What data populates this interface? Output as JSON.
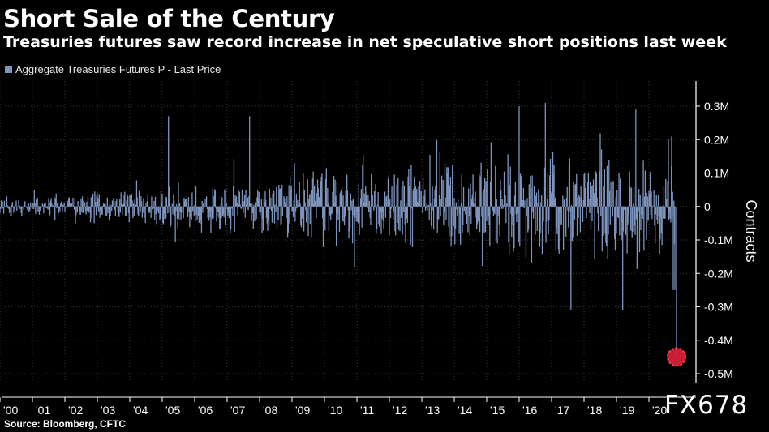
{
  "chart_data": {
    "type": "bar",
    "title": "Short Sale of the Century",
    "subtitle": "Treasuries futures saw record increase in net speculative short positions last week",
    "legend": [
      "Aggregate Treasuries Futures P - Last Price"
    ],
    "ylabel": "Contracts",
    "ylim": [
      -0.5,
      0.35
    ],
    "yunit": "M contracts",
    "yticks": [
      {
        "value": 0.3,
        "label": "0.3M"
      },
      {
        "value": 0.2,
        "label": "0.2M"
      },
      {
        "value": 0.1,
        "label": "0.1M"
      },
      {
        "value": 0,
        "label": "0"
      },
      {
        "value": -0.1,
        "label": "-0.1M"
      },
      {
        "value": -0.2,
        "label": "-0.2M"
      },
      {
        "value": -0.3,
        "label": "-0.3M"
      },
      {
        "value": -0.4,
        "label": "-0.4M"
      },
      {
        "value": -0.5,
        "label": "-0.5M"
      }
    ],
    "xrange": [
      2000,
      2021
    ],
    "xticks": [
      "'00",
      "'01",
      "'02",
      "'03",
      "'04",
      "'05",
      "'06",
      "'07",
      "'08",
      "'09",
      "'10",
      "'11",
      "'12",
      "'13",
      "'14",
      "'15",
      "'16",
      "'17",
      "'18",
      "'19",
      "'20"
    ],
    "series": [
      {
        "name": "Aggregate Treasuries Futures P - Last Price",
        "notable_points": [
          {
            "x": 2005.2,
            "y": 0.27
          },
          {
            "x": 2007.7,
            "y": 0.27
          },
          {
            "x": 2016.0,
            "y": 0.3
          },
          {
            "x": 2016.8,
            "y": 0.31
          },
          {
            "x": 2017.6,
            "y": -0.31
          },
          {
            "x": 2019.2,
            "y": -0.31
          },
          {
            "x": 2019.6,
            "y": 0.29
          },
          {
            "x": 2020.85,
            "y": -0.45
          }
        ]
      }
    ],
    "annotation": {
      "type": "highlight-circle",
      "x": 2020.85,
      "y": -0.45
    }
  },
  "colors": {
    "background": "#000000",
    "bar": "#7d94bd",
    "text": "#ffffff",
    "grid": "#3a3a3a",
    "highlight": "#e0223a"
  },
  "source": "Source: Bloomberg, CFTC",
  "watermark": "FX678"
}
